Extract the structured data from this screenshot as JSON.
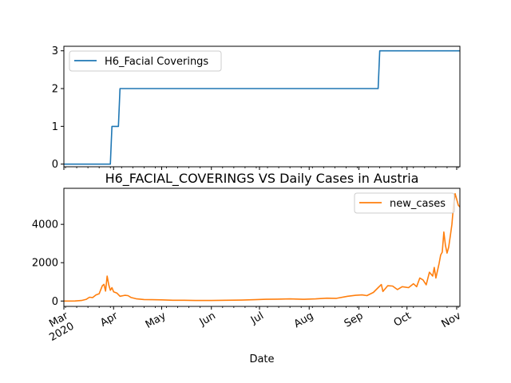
{
  "chart_data": [
    {
      "type": "line",
      "title": "",
      "xlabel": "",
      "ylabel": "",
      "x_range": [
        "2020-03-01",
        "2020-11-03"
      ],
      "ylim": [
        -0.07,
        3.12
      ],
      "yticks": [
        0,
        1,
        2,
        3
      ],
      "ytick_labels": [
        "0",
        "1",
        "2",
        "3"
      ],
      "grid": false,
      "legend_position": "upper left",
      "series": [
        {
          "name": "H6_Facial Coverings",
          "color": "#1f77b4",
          "points": [
            [
              "2020-03-01",
              0
            ],
            [
              "2020-03-30",
              0
            ],
            [
              "2020-03-31",
              1
            ],
            [
              "2020-04-04",
              1
            ],
            [
              "2020-04-05",
              2
            ],
            [
              "2020-09-13",
              2
            ],
            [
              "2020-09-14",
              3
            ],
            [
              "2020-11-03",
              3
            ]
          ]
        }
      ]
    },
    {
      "type": "line",
      "title": "H6_FACIAL_COVERINGS VS Daily Cases in Austria",
      "xlabel": "Date",
      "ylabel": "",
      "x_range": [
        "2020-03-01",
        "2020-11-03"
      ],
      "ylim": [
        -280,
        5880
      ],
      "yticks": [
        0,
        2000,
        4000
      ],
      "ytick_labels": [
        "0",
        "2000",
        "4000"
      ],
      "xticks": [
        "2020-03-01",
        "2020-04-01",
        "2020-05-01",
        "2020-06-01",
        "2020-07-01",
        "2020-08-01",
        "2020-09-01",
        "2020-10-01",
        "2020-11-01"
      ],
      "xtick_labels": [
        "Mar\n2020",
        "Apr",
        "May",
        "Jun",
        "Jul",
        "Aug",
        "Sep",
        "Oct",
        "Nov"
      ],
      "grid": false,
      "legend_position": "upper right",
      "series": [
        {
          "name": "new_cases",
          "color": "#ff7f0e",
          "points": [
            [
              "2020-03-01",
              0
            ],
            [
              "2020-03-08",
              5
            ],
            [
              "2020-03-12",
              30
            ],
            [
              "2020-03-15",
              90
            ],
            [
              "2020-03-17",
              200
            ],
            [
              "2020-03-19",
              180
            ],
            [
              "2020-03-21",
              320
            ],
            [
              "2020-03-23",
              380
            ],
            [
              "2020-03-25",
              800
            ],
            [
              "2020-03-26",
              870
            ],
            [
              "2020-03-27",
              520
            ],
            [
              "2020-03-28",
              1300
            ],
            [
              "2020-03-29",
              850
            ],
            [
              "2020-03-30",
              560
            ],
            [
              "2020-03-31",
              700
            ],
            [
              "2020-04-01",
              480
            ],
            [
              "2020-04-03",
              420
            ],
            [
              "2020-04-05",
              250
            ],
            [
              "2020-04-08",
              300
            ],
            [
              "2020-04-10",
              280
            ],
            [
              "2020-04-12",
              180
            ],
            [
              "2020-04-15",
              120
            ],
            [
              "2020-04-20",
              80
            ],
            [
              "2020-04-25",
              70
            ],
            [
              "2020-05-01",
              60
            ],
            [
              "2020-05-08",
              40
            ],
            [
              "2020-05-15",
              40
            ],
            [
              "2020-05-22",
              30
            ],
            [
              "2020-06-01",
              30
            ],
            [
              "2020-06-10",
              40
            ],
            [
              "2020-06-20",
              50
            ],
            [
              "2020-06-28",
              70
            ],
            [
              "2020-07-05",
              90
            ],
            [
              "2020-07-12",
              100
            ],
            [
              "2020-07-20",
              110
            ],
            [
              "2020-07-28",
              90
            ],
            [
              "2020-08-05",
              110
            ],
            [
              "2020-08-12",
              150
            ],
            [
              "2020-08-18",
              140
            ],
            [
              "2020-08-25",
              250
            ],
            [
              "2020-08-30",
              300
            ],
            [
              "2020-09-03",
              320
            ],
            [
              "2020-09-06",
              280
            ],
            [
              "2020-09-10",
              450
            ],
            [
              "2020-09-13",
              700
            ],
            [
              "2020-09-15",
              860
            ],
            [
              "2020-09-16",
              500
            ],
            [
              "2020-09-19",
              800
            ],
            [
              "2020-09-22",
              780
            ],
            [
              "2020-09-25",
              600
            ],
            [
              "2020-09-28",
              750
            ],
            [
              "2020-10-02",
              700
            ],
            [
              "2020-10-05",
              900
            ],
            [
              "2020-10-07",
              750
            ],
            [
              "2020-10-09",
              1200
            ],
            [
              "2020-10-11",
              1100
            ],
            [
              "2020-10-13",
              850
            ],
            [
              "2020-10-15",
              1500
            ],
            [
              "2020-10-17",
              1300
            ],
            [
              "2020-10-18",
              1750
            ],
            [
              "2020-10-19",
              1200
            ],
            [
              "2020-10-21",
              1950
            ],
            [
              "2020-10-22",
              2400
            ],
            [
              "2020-10-23",
              2550
            ],
            [
              "2020-10-24",
              3600
            ],
            [
              "2020-10-25",
              2900
            ],
            [
              "2020-10-26",
              2500
            ],
            [
              "2020-10-27",
              2800
            ],
            [
              "2020-10-28",
              3400
            ],
            [
              "2020-10-29",
              4000
            ],
            [
              "2020-10-30",
              5000
            ],
            [
              "2020-10-31",
              5600
            ],
            [
              "2020-11-01",
              5300
            ],
            [
              "2020-11-02",
              5000
            ],
            [
              "2020-11-03",
              4900
            ]
          ]
        }
      ]
    }
  ]
}
